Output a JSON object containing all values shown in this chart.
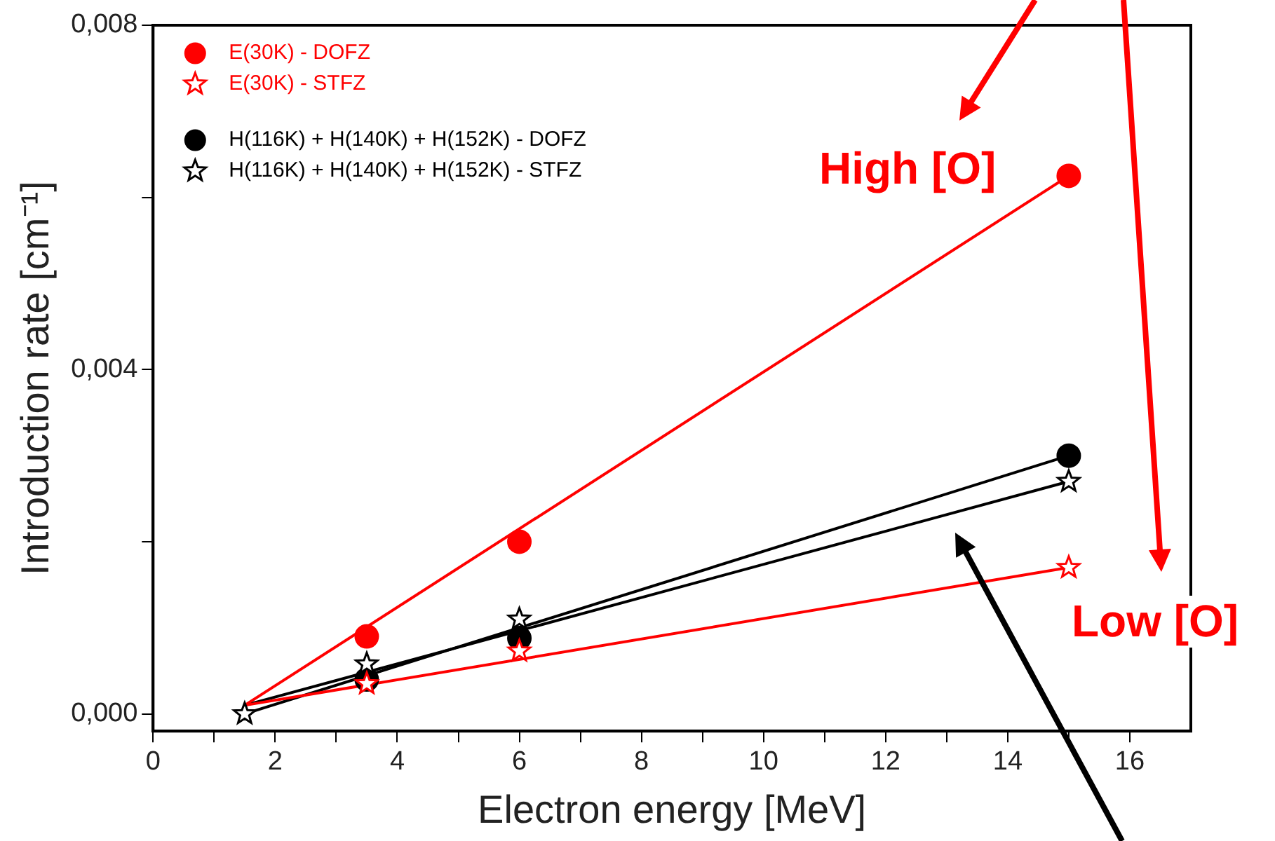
{
  "chart_data": {
    "type": "scatter",
    "xlabel": "Electron energy [MeV]",
    "ylabel": "Introduction rate [cm⁻¹]",
    "xlim": [
      0,
      17
    ],
    "xticks": [
      0,
      {
        "value": 1,
        "label": null
      },
      2,
      {
        "value": 3,
        "label": null
      },
      4,
      {
        "value": 5,
        "label": null
      },
      6,
      {
        "value": 7,
        "label": null
      },
      8,
      {
        "value": 9,
        "label": null
      },
      10,
      {
        "value": 11,
        "label": null
      },
      12,
      {
        "value": 13,
        "label": null
      },
      14,
      {
        "value": 15,
        "label": null
      },
      16
    ],
    "ylim": [
      -0.0002,
      0.008
    ],
    "yticks": [
      {
        "value": 0,
        "label": "0,000"
      },
      {
        "value": 0.002,
        "label": null
      },
      {
        "value": 0.004,
        "label": "0,004"
      },
      {
        "value": 0.006,
        "label": null
      },
      {
        "value": 0.008,
        "label": "0,008"
      }
    ],
    "grid": false,
    "legend": "top left",
    "series": [
      {
        "name": "E(30K) - DOFZ",
        "marker": "circle",
        "color": "#ff0000",
        "x": [
          3.5,
          6,
          15
        ],
        "values": [
          0.0009,
          0.002,
          0.00625
        ]
      },
      {
        "name": "E(30K) - STFZ",
        "marker": "star",
        "color": "#ff0000",
        "x": [
          3.5,
          6,
          15
        ],
        "values": [
          0.00035,
          0.00073,
          0.0017
        ]
      },
      {
        "name": "H(116K) + H(140K) + H(152K) - DOFZ",
        "marker": "circle",
        "color": "#000000",
        "x": [
          3.5,
          6,
          15
        ],
        "values": [
          0.0004,
          0.00088,
          0.003
        ]
      },
      {
        "name": "H(116K) + H(140K) + H(152K) - STFZ",
        "marker": "star",
        "color": "#000000",
        "x": [
          1.5,
          3.5,
          6,
          15
        ],
        "values": [
          0,
          0.00058,
          0.0011,
          0.0027
        ]
      },
      {
        "type": "line",
        "marker": "none",
        "color": "#ff0000",
        "x": [
          1.5,
          15
        ],
        "values": [
          0.0001,
          0.00625
        ]
      },
      {
        "type": "line",
        "marker": "none",
        "color": "#ff0000",
        "x": [
          1.5,
          15
        ],
        "values": [
          0.0001,
          0.0017
        ]
      },
      {
        "type": "line",
        "marker": "none",
        "color": "#000000",
        "x": [
          1.5,
          15
        ],
        "values": [
          0,
          0.003
        ]
      },
      {
        "type": "line",
        "marker": "none",
        "color": "#000000",
        "x": [
          1.5,
          15
        ],
        "values": [
          0.0001,
          0.0027
        ]
      }
    ],
    "annotations": [
      "High [O]",
      "Low [O]"
    ]
  }
}
